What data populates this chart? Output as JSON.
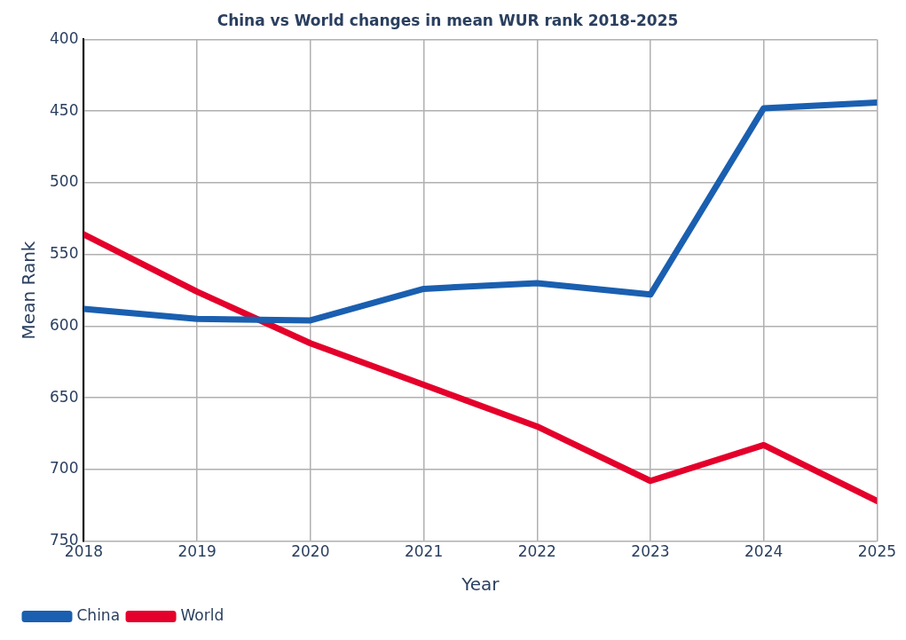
{
  "chart_data": {
    "type": "line",
    "title": "China vs World changes in mean WUR rank 2018-2025",
    "xlabel": "Year",
    "ylabel": "Mean Rank",
    "x": [
      2018,
      2019,
      2020,
      2021,
      2022,
      2023,
      2024,
      2025
    ],
    "series": [
      {
        "name": "China",
        "color": "#1a5fb0",
        "values": [
          588,
          595,
          596,
          574,
          570,
          578,
          448,
          444
        ]
      },
      {
        "name": "World",
        "color": "#e4002b",
        "values": [
          536,
          576,
          612,
          641,
          670,
          708,
          683,
          722
        ]
      }
    ],
    "xlim": [
      2018,
      2025
    ],
    "xticks": [
      2018,
      2019,
      2020,
      2021,
      2022,
      2023,
      2024,
      2025
    ],
    "ylim": [
      750,
      400
    ],
    "yticks": [
      400,
      450,
      500,
      550,
      600,
      650,
      700,
      750
    ],
    "grid": true,
    "legend": "bottom left",
    "marker": "none",
    "line_style": "solid"
  }
}
